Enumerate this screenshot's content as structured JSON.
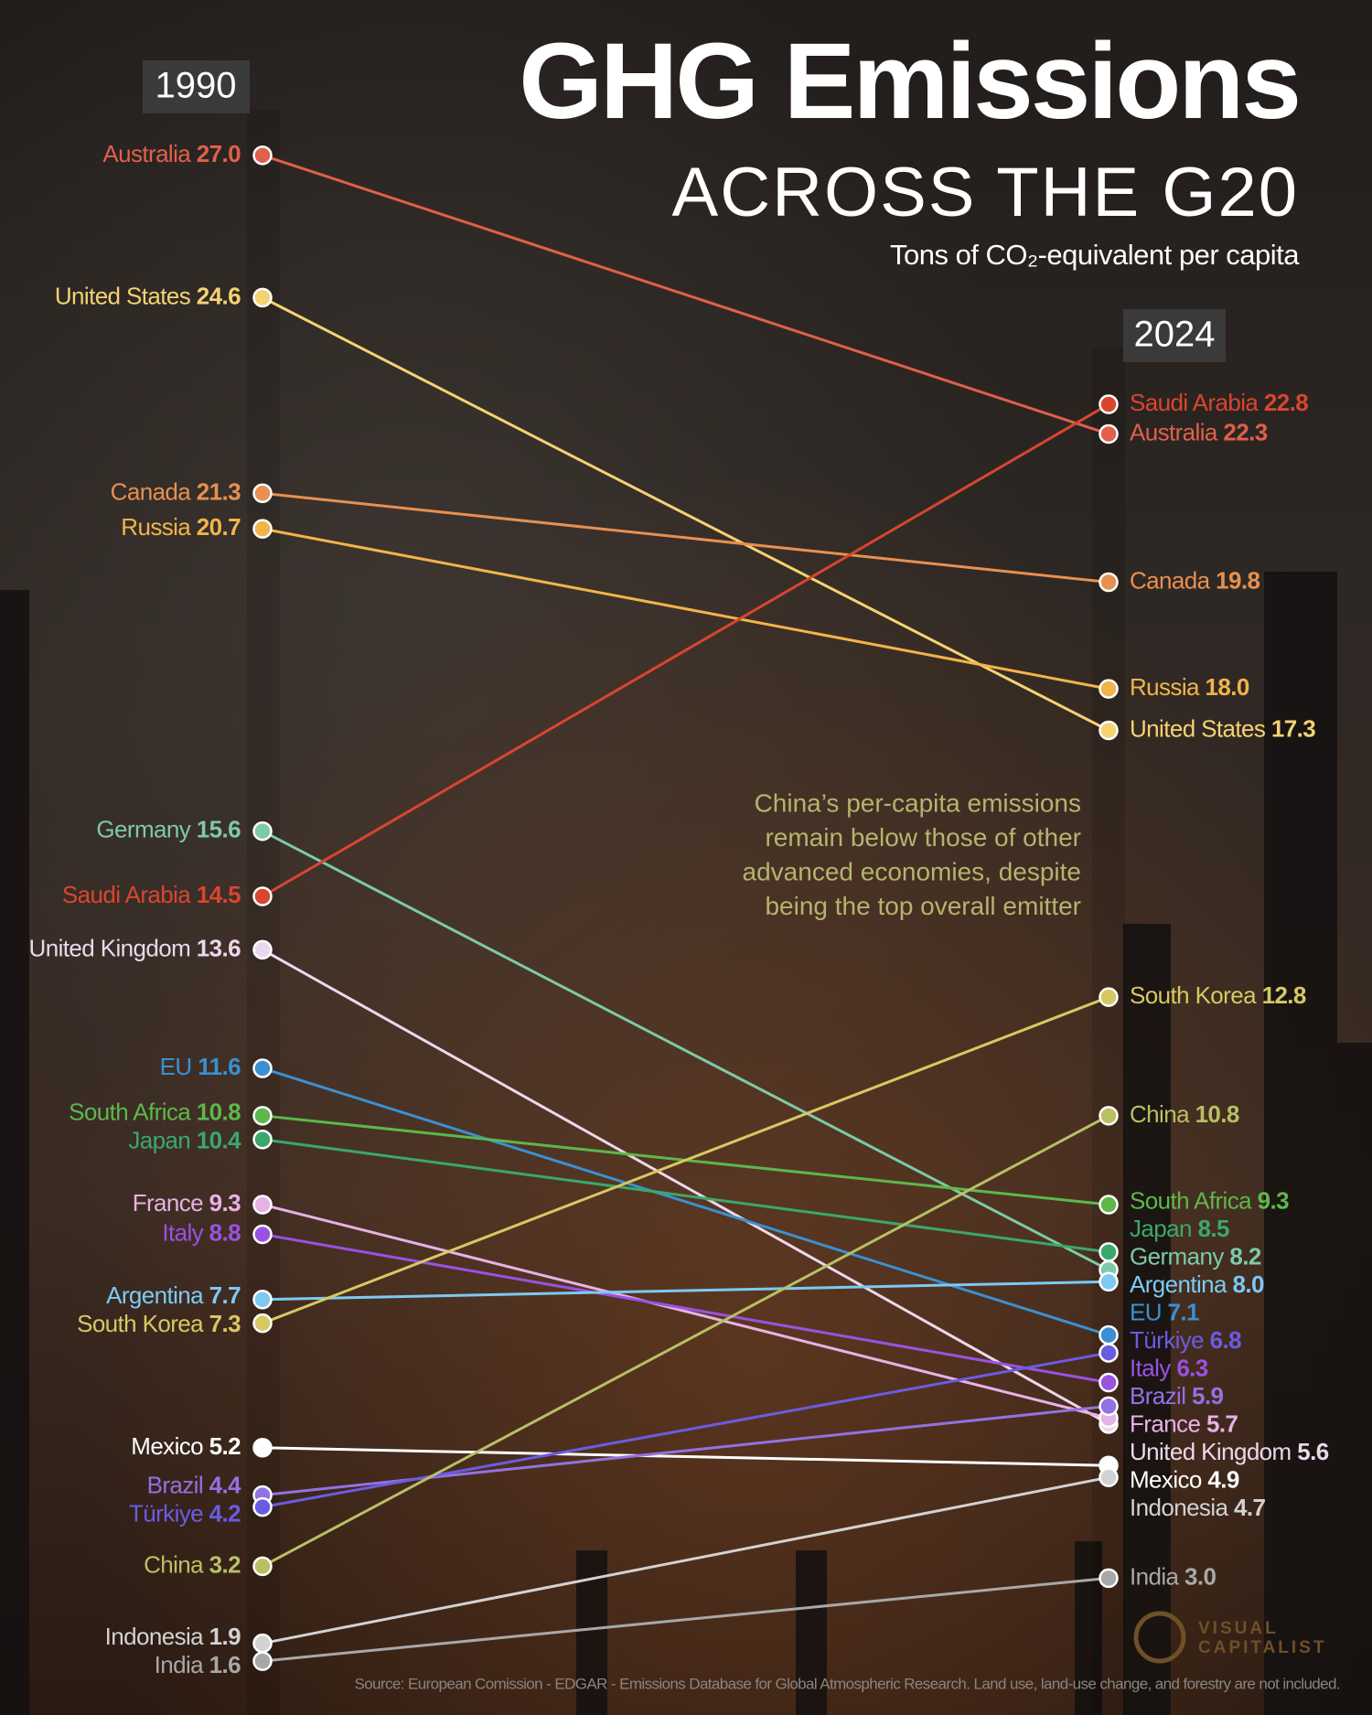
{
  "chart_data": {
    "type": "slope",
    "title": "GHG Emissions",
    "subtitle": "ACROSS THE G20",
    "unit": "Tons of CO₂-equivalent per capita",
    "periods": [
      "1990",
      "2024"
    ],
    "ylim": [
      1,
      28
    ],
    "series": [
      {
        "name": "Australia",
        "color": "#e0604a",
        "values": [
          27.0,
          22.3
        ],
        "value_labels": [
          "27.0",
          "22.3"
        ]
      },
      {
        "name": "United States",
        "color": "#f5d272",
        "values": [
          24.6,
          17.3
        ],
        "value_labels": [
          "24.6",
          "17.3"
        ]
      },
      {
        "name": "Canada",
        "color": "#e8904f",
        "values": [
          21.3,
          19.8
        ],
        "value_labels": [
          "21.3",
          "19.8"
        ]
      },
      {
        "name": "Russia",
        "color": "#f2b44a",
        "values": [
          20.7,
          18.0
        ],
        "value_labels": [
          "20.7",
          "18.0"
        ]
      },
      {
        "name": "Germany",
        "color": "#7ccaa8",
        "values": [
          15.6,
          8.2
        ],
        "value_labels": [
          "15.6",
          "8.2"
        ]
      },
      {
        "name": "Saudi Arabia",
        "color": "#d9452f",
        "values": [
          14.5,
          22.8
        ],
        "value_labels": [
          "14.5",
          "22.8"
        ]
      },
      {
        "name": "United Kingdom",
        "color": "#ecd8ec",
        "values": [
          13.6,
          5.6
        ],
        "value_labels": [
          "13.6",
          "5.6"
        ]
      },
      {
        "name": "EU",
        "color": "#3a90d2",
        "values": [
          11.6,
          7.1
        ],
        "value_labels": [
          "11.6",
          "7.1"
        ]
      },
      {
        "name": "South Africa",
        "color": "#5cb84a",
        "values": [
          10.8,
          9.3
        ],
        "value_labels": [
          "10.8",
          "9.3"
        ]
      },
      {
        "name": "Japan",
        "color": "#3aa86c",
        "values": [
          10.4,
          8.5
        ],
        "value_labels": [
          "10.4",
          "8.5"
        ]
      },
      {
        "name": "France",
        "color": "#e6b2e6",
        "values": [
          9.3,
          5.7
        ],
        "value_labels": [
          "9.3",
          "5.7"
        ]
      },
      {
        "name": "Italy",
        "color": "#9a52e2",
        "values": [
          8.8,
          6.3
        ],
        "value_labels": [
          "8.8",
          "6.3"
        ]
      },
      {
        "name": "Argentina",
        "color": "#7ccaf2",
        "values": [
          7.7,
          8.0
        ],
        "value_labels": [
          "7.7",
          "8.0"
        ]
      },
      {
        "name": "South Korea",
        "color": "#d8c862",
        "values": [
          7.3,
          12.8
        ],
        "value_labels": [
          "7.3",
          "12.8"
        ]
      },
      {
        "name": "Mexico",
        "color": "#ffffff",
        "values": [
          5.2,
          4.9
        ],
        "value_labels": [
          "5.2",
          "4.9"
        ]
      },
      {
        "name": "Brazil",
        "color": "#9272e2",
        "values": [
          4.4,
          5.9
        ],
        "value_labels": [
          "4.4",
          "5.9"
        ]
      },
      {
        "name": "Türkiye",
        "color": "#6a5ce2",
        "values": [
          4.2,
          6.8
        ],
        "value_labels": [
          "4.2",
          "6.8"
        ]
      },
      {
        "name": "China",
        "color": "#b8c062",
        "values": [
          3.2,
          10.8
        ],
        "value_labels": [
          "3.2",
          "10.8"
        ]
      },
      {
        "name": "Indonesia",
        "color": "#d2d2d2",
        "values": [
          1.9,
          4.7
        ],
        "value_labels": [
          "1.9",
          "4.7"
        ]
      },
      {
        "name": "India",
        "color": "#a8a8a8",
        "values": [
          1.6,
          3.0
        ],
        "value_labels": [
          "1.6",
          "3.0"
        ]
      }
    ],
    "annotation": [
      "China’s per-capita emissions",
      "remain below those of other",
      "advanced economies, despite",
      "being the top overall emitter"
    ],
    "source": "Source: European Comission - EDGAR - Emissions Database for Global Atmospheric Research. Land use, land-use change, and forestry are not included.",
    "credit": [
      "VISUAL",
      "CAPITALIST"
    ]
  }
}
